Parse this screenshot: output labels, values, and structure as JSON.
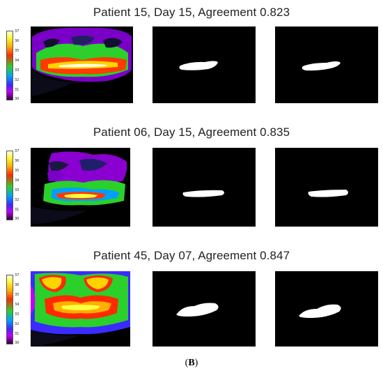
{
  "rows": [
    {
      "title": "Patient 15, Day 15, Agreement 0.823"
    },
    {
      "title": "Patient 06, Day 15, Agreement 0.835"
    },
    {
      "title": "Patient 45, Day 07, Agreement 0.847"
    }
  ],
  "colorbar": {
    "ticks": [
      "37",
      "36",
      "35",
      "34",
      "33",
      "32",
      "31",
      "30"
    ],
    "colors": [
      "#fffff0",
      "#ffff40",
      "#ffb000",
      "#ff2a00",
      "#2bd02b",
      "#00a0ff",
      "#3b2bff",
      "#c000ff",
      "#300030"
    ]
  },
  "caption": {
    "open": "(",
    "letter": "B",
    "close": ")"
  }
}
